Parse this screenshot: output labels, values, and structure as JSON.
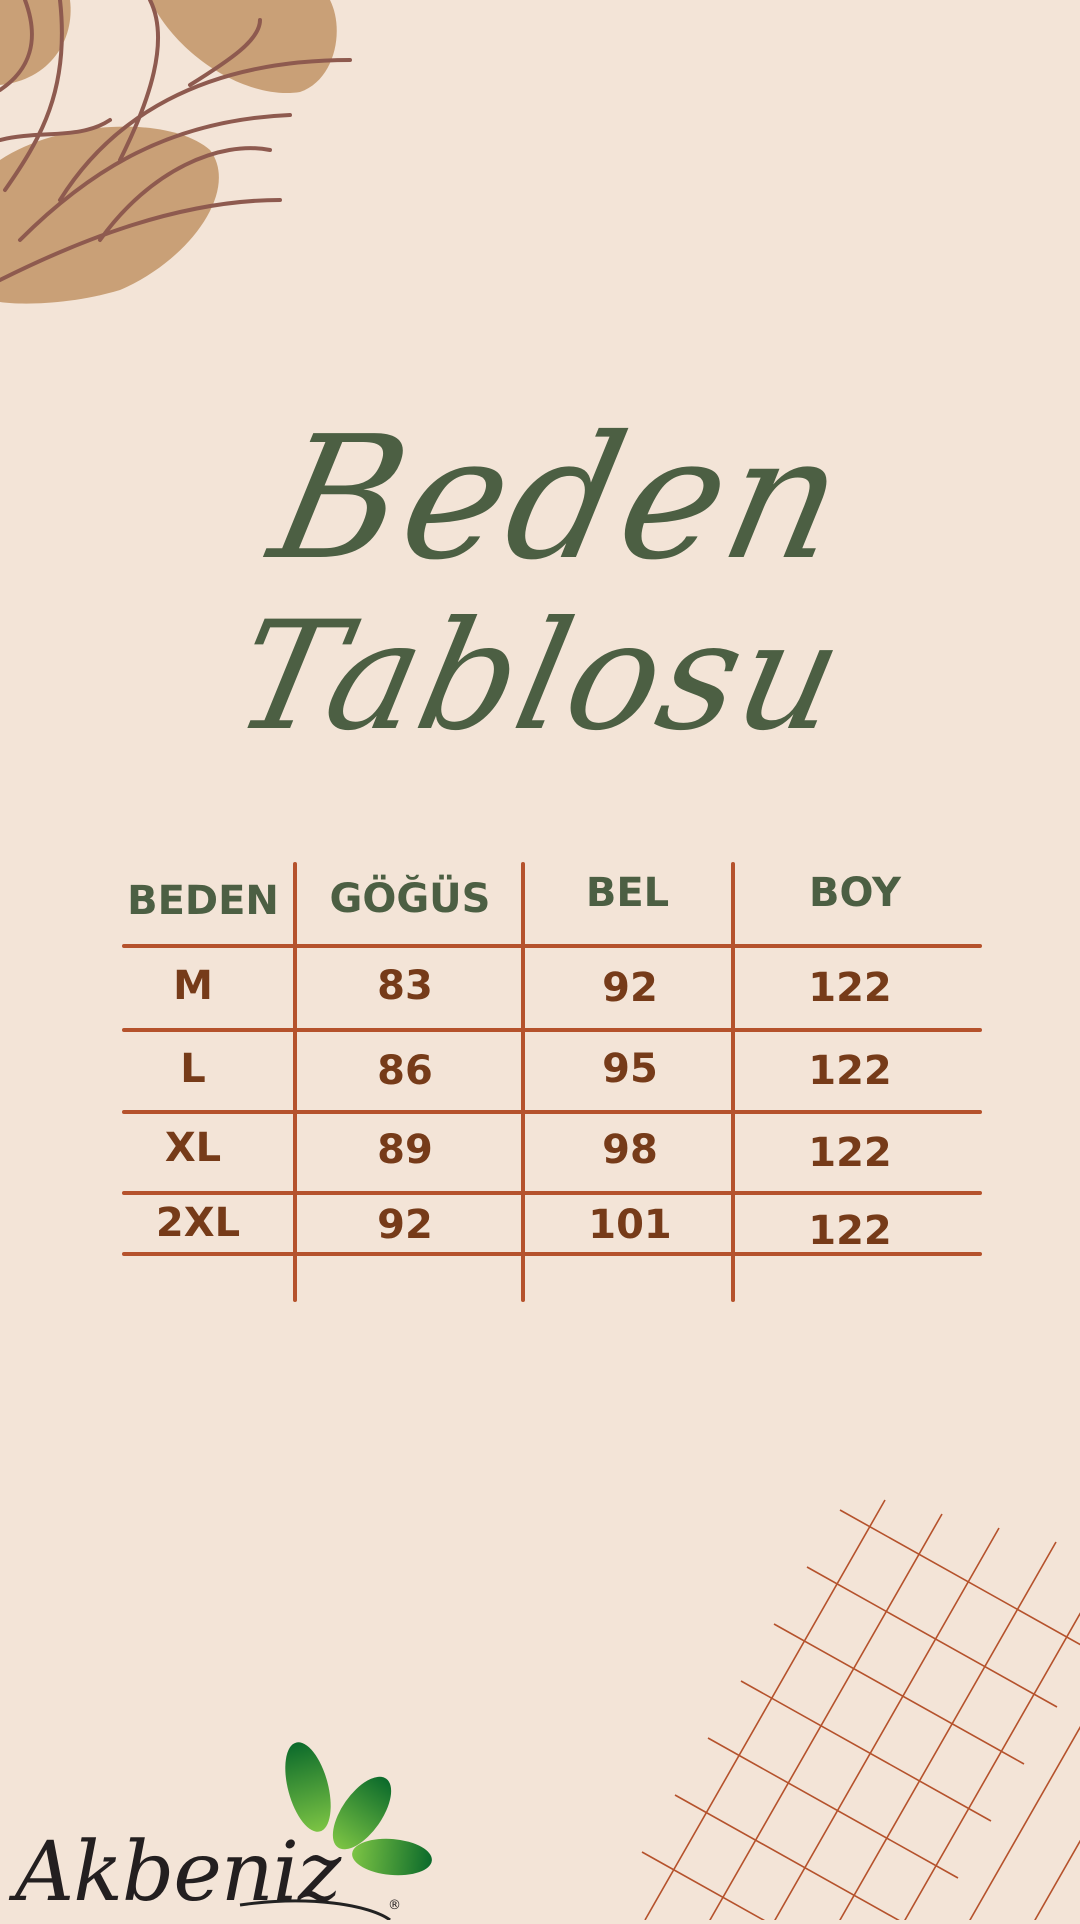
{
  "title": {
    "line1": "Beden",
    "line2": "Tablosu"
  },
  "table": {
    "headers": [
      "BEDEN",
      "GÖĞÜS",
      "BEL",
      "BOY"
    ],
    "rows": [
      [
        "M",
        "83",
        "92",
        "122"
      ],
      [
        "L",
        "86",
        "95",
        "122"
      ],
      [
        "XL",
        "89",
        "98",
        "122"
      ],
      [
        "2XL",
        "92",
        "101",
        "122"
      ]
    ]
  },
  "logo": {
    "text": "Akbeniz",
    "mark": "®"
  },
  "colors": {
    "background": "#f3e4d7",
    "title": "#4c5f43",
    "header": "#4c5f43",
    "values": "#763b19",
    "lines": "#b5522c",
    "logo_leaves": "#1a7a30"
  }
}
